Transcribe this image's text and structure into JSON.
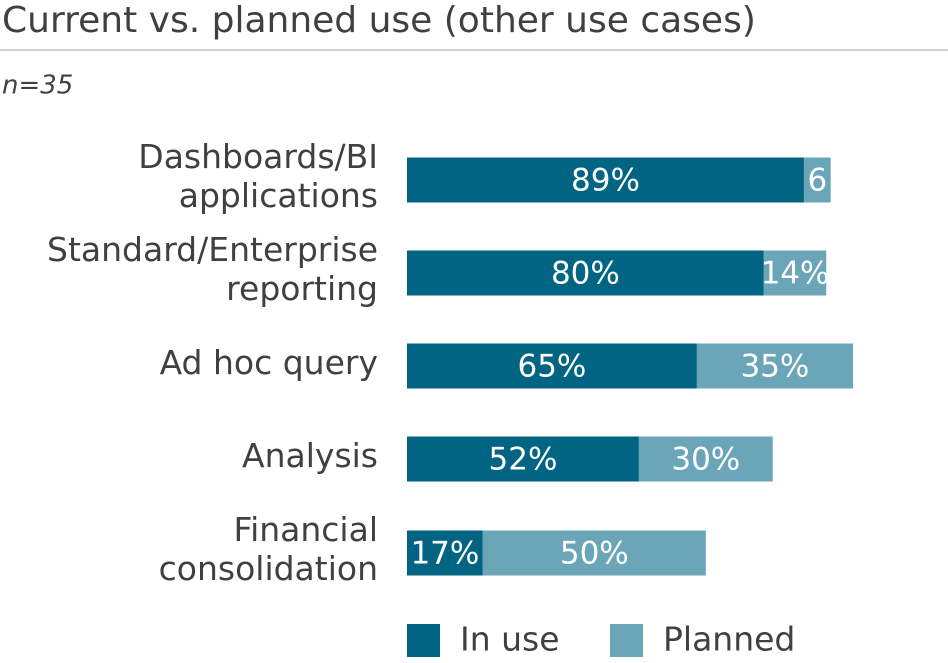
{
  "chart_data": {
    "type": "stacked-bar-horizontal",
    "title": "Current vs. planned use (other use cases)",
    "subtitle": "n=35",
    "categories": [
      "Dashboards/BI applications",
      "Standard/Enterprise reporting",
      "Ad hoc query",
      "Analysis",
      "Financial consolidation"
    ],
    "series": [
      {
        "name": "In use",
        "color": "#006482",
        "values": [
          89,
          80,
          65,
          52,
          17
        ],
        "value_labels": [
          "89%",
          "80%",
          "65%",
          "52%",
          "17%"
        ]
      },
      {
        "name": "Planned",
        "color": "#6aa6b8",
        "values": [
          6,
          14,
          35,
          30,
          50
        ],
        "value_labels": [
          "6",
          "14%",
          "35%",
          "30%",
          "50%"
        ]
      }
    ],
    "xlim": [
      0,
      100
    ]
  }
}
